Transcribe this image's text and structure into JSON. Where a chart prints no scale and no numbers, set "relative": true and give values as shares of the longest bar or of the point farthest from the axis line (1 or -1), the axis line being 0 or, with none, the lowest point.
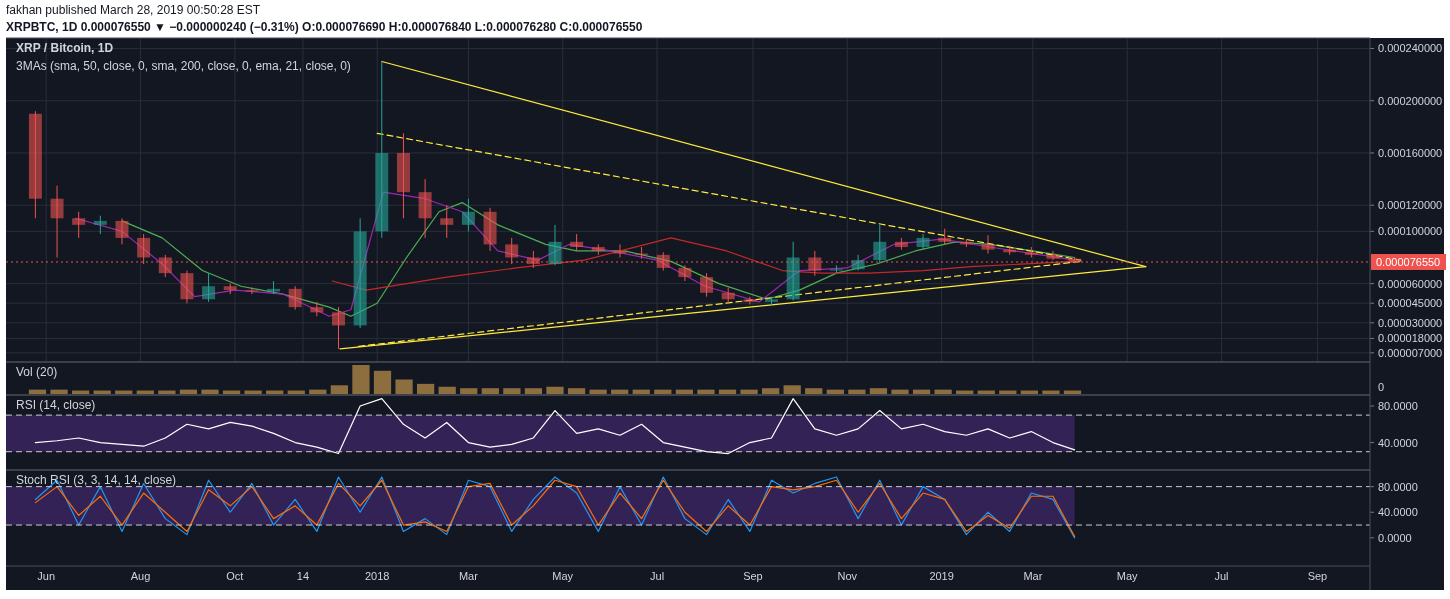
{
  "chart_data": [
    {
      "type": "candlestick",
      "title": "XRP / Bitcoin, 1D",
      "subtitle": "3MAs (sma, 50, close, 0, sma, 200, close, 0, ema, 21, close, 0)",
      "annotations": [
        "fakhan published March 28, 2019 00:50:28 EST",
        "XRPBTC, 1D 0.000076550 ▼ −0.000000240 (−0.31%) O:0.000076690 H:0.000076840 L:0.000076280 C:0.000076550"
      ],
      "x": [
        "2017-05-25",
        "2017-06-08",
        "2017-06-22",
        "2017-07-06",
        "2017-07-20",
        "2017-08-03",
        "2017-08-17",
        "2017-08-31",
        "2017-09-14",
        "2017-09-28",
        "2017-10-12",
        "2017-10-26",
        "2017-11-09",
        "2017-11-23",
        "2017-12-07",
        "2017-12-21",
        "2018-01-04",
        "2018-01-18",
        "2018-02-01",
        "2018-02-15",
        "2018-03-01",
        "2018-03-15",
        "2018-03-29",
        "2018-04-12",
        "2018-04-26",
        "2018-05-10",
        "2018-05-24",
        "2018-06-07",
        "2018-06-21",
        "2018-07-05",
        "2018-07-19",
        "2018-08-02",
        "2018-08-16",
        "2018-08-30",
        "2018-09-13",
        "2018-09-27",
        "2018-10-11",
        "2018-10-25",
        "2018-11-08",
        "2018-11-22",
        "2018-12-06",
        "2018-12-20",
        "2019-01-03",
        "2019-01-17",
        "2019-01-31",
        "2019-02-14",
        "2019-02-28",
        "2019-03-14",
        "2019-03-28"
      ],
      "ohlc": [
        [
          0.00019,
          0.000192,
          0.00011,
          0.000125
        ],
        [
          0.000125,
          0.000135,
          8e-05,
          0.00011
        ],
        [
          0.00011,
          0.000115,
          9.5e-05,
          0.000105
        ],
        [
          0.000105,
          0.000112,
          9.8e-05,
          0.000108
        ],
        [
          0.000108,
          0.00011,
          9e-05,
          9.5e-05
        ],
        [
          9.5e-05,
          9.8e-05,
          7.5e-05,
          8e-05
        ],
        [
          8e-05,
          8.2e-05,
          6.5e-05,
          6.8e-05
        ],
        [
          6.8e-05,
          7e-05,
          4.5e-05,
          4.8e-05
        ],
        [
          4.8e-05,
          6.8e-05,
          4.6e-05,
          5.8e-05
        ],
        [
          5.8e-05,
          6e-05,
          5.2e-05,
          5.5e-05
        ],
        [
          5.5e-05,
          5.7e-05,
          5.2e-05,
          5.4e-05
        ],
        [
          5.4e-05,
          6.2e-05,
          5.2e-05,
          5.6e-05
        ],
        [
          5.6e-05,
          5.8e-05,
          4e-05,
          4.2e-05
        ],
        [
          4.2e-05,
          4.6e-05,
          3.5e-05,
          3.8e-05
        ],
        [
          3.8e-05,
          4.2e-05,
          1e-05,
          2.8e-05
        ],
        [
          2.8e-05,
          0.00011,
          2.6e-05,
          0.0001
        ],
        [
          0.0001,
          0.00023,
          9.5e-05,
          0.00016
        ],
        [
          0.00016,
          0.000175,
          0.00011,
          0.00013
        ],
        [
          0.00013,
          0.00014,
          9.5e-05,
          0.00011
        ],
        [
          0.00011,
          0.00012,
          9.5e-05,
          0.000105
        ],
        [
          0.000105,
          0.000125,
          0.0001,
          0.000115
        ],
        [
          0.000115,
          0.000118,
          8.5e-05,
          9e-05
        ],
        [
          9e-05,
          9.5e-05,
          7.5e-05,
          8e-05
        ],
        [
          8e-05,
          8.5e-05,
          7.2e-05,
          7.5e-05
        ],
        [
          7.5e-05,
          0.000105,
          7.4e-05,
          9.2e-05
        ],
        [
          9.2e-05,
          9.8e-05,
          8.5e-05,
          8.8e-05
        ],
        [
          8.8e-05,
          9e-05,
          8.2e-05,
          8.5e-05
        ],
        [
          8.5e-05,
          9e-05,
          8e-05,
          8.3e-05
        ],
        [
          8.3e-05,
          8.8e-05,
          7.9e-05,
          8.2e-05
        ],
        [
          8.2e-05,
          8.4e-05,
          7e-05,
          7.2e-05
        ],
        [
          7.2e-05,
          7.4e-05,
          6.2e-05,
          6.5e-05
        ],
        [
          6.5e-05,
          6.8e-05,
          5e-05,
          5.3e-05
        ],
        [
          5.3e-05,
          5.7e-05,
          4.5e-05,
          4.8e-05
        ],
        [
          4.8e-05,
          5e-05,
          4.4e-05,
          4.6e-05
        ],
        [
          4.6e-05,
          5e-05,
          4.3e-05,
          4.8e-05
        ],
        [
          4.8e-05,
          9.2e-05,
          4.7e-05,
          8e-05
        ],
        [
          8e-05,
          8.5e-05,
          6.6e-05,
          7e-05
        ],
        [
          7e-05,
          7.4e-05,
          6.8e-05,
          7.1e-05
        ],
        [
          7.1e-05,
          8.2e-05,
          7e-05,
          7.8e-05
        ],
        [
          7.8e-05,
          0.000105,
          7.6e-05,
          9.2e-05
        ],
        [
          9.2e-05,
          9.5e-05,
          8.6e-05,
          8.8e-05
        ],
        [
          8.8e-05,
          9.8e-05,
          8.6e-05,
          9.5e-05
        ],
        [
          9.5e-05,
          0.000102,
          9e-05,
          9.2e-05
        ],
        [
          9.2e-05,
          9.4e-05,
          8.8e-05,
          9e-05
        ],
        [
          9e-05,
          9.7e-05,
          8.3e-05,
          8.6e-05
        ],
        [
          8.6e-05,
          8.9e-05,
          8.2e-05,
          8.4e-05
        ],
        [
          8.4e-05,
          8.8e-05,
          8e-05,
          8.2e-05
        ],
        [
          8.2e-05,
          8.5e-05,
          7.8e-05,
          7.9e-05
        ],
        [
          7.9e-05,
          8e-05,
          7.63e-05,
          7.655e-05
        ]
      ],
      "colors": [
        "#ef5350",
        "#ef5350",
        "#ef5350",
        "#26a69a",
        "#ef5350",
        "#ef5350",
        "#ef5350",
        "#ef5350",
        "#26a69a",
        "#ef5350",
        "#ef5350",
        "#26a69a",
        "#ef5350",
        "#ef5350",
        "#ef5350",
        "#26a69a",
        "#26a69a",
        "#ef5350",
        "#ef5350",
        "#ef5350",
        "#26a69a",
        "#ef5350",
        "#ef5350",
        "#ef5350",
        "#26a69a",
        "#ef5350",
        "#ef5350",
        "#ef5350",
        "#ef5350",
        "#ef5350",
        "#ef5350",
        "#ef5350",
        "#ef5350",
        "#ef5350",
        "#26a69a",
        "#26a69a",
        "#ef5350",
        "#26a69a",
        "#26a69a",
        "#26a69a",
        "#ef5350",
        "#26a69a",
        "#ef5350",
        "#ef5350",
        "#ef5350",
        "#ef5350",
        "#ef5350",
        "#ef5350",
        "#ef5350"
      ],
      "series": [
        {
          "type": "line",
          "color": "#4caf50",
          "x": [
            "2017-07-20",
            "2017-08-15",
            "2017-09-10",
            "2017-10-05",
            "2017-11-01",
            "2017-12-01",
            "2017-12-15",
            "2018-01-01",
            "2018-01-20",
            "2018-02-10",
            "2018-02-25",
            "2018-03-20",
            "2018-04-20",
            "2018-05-10",
            "2018-06-10",
            "2018-07-10",
            "2018-08-10",
            "2018-09-10",
            "2018-10-01",
            "2018-10-25",
            "2018-11-20",
            "2018-12-15",
            "2019-01-10",
            "2019-02-01",
            "2019-03-01",
            "2019-03-28"
          ],
          "values": [
            0.000108,
            9.5e-05,
            7e-05,
            5.8e-05,
            5.2e-05,
            4.2e-05,
            3.5e-05,
            4.5e-05,
            8e-05,
            0.000115,
            0.000122,
            0.000105,
            9e-05,
            8.5e-05,
            8.5e-05,
            7.7e-05,
            6e-05,
            4.8e-05,
            5.5e-05,
            6.8e-05,
            7.5e-05,
            8.5e-05,
            9.2e-05,
            9e-05,
            8.5e-05,
            8e-05
          ]
        },
        {
          "type": "line",
          "color": "#c62828",
          "x": [
            "2017-12-03",
            "2017-12-25",
            "2018-02-15",
            "2018-04-01",
            "2018-05-15",
            "2018-07-10",
            "2018-08-15",
            "2018-09-20",
            "2018-10-15",
            "2018-11-15",
            "2018-12-20",
            "2019-01-20",
            "2019-03-28"
          ],
          "values": [
            6.2e-05,
            5.5e-05,
            6.5e-05,
            7.2e-05,
            7.8e-05,
            9.5e-05,
            8.5e-05,
            7e-05,
            6.8e-05,
            6.8e-05,
            7e-05,
            7.3e-05,
            7.7e-05
          ]
        },
        {
          "type": "line",
          "color": "#9c27b0",
          "x": [
            "2017-06-20",
            "2017-07-20",
            "2017-08-15",
            "2017-09-05",
            "2017-10-01",
            "2017-11-01",
            "2017-12-01",
            "2017-12-15",
            "2018-01-05",
            "2018-02-01",
            "2018-02-25",
            "2018-03-20",
            "2018-04-15",
            "2018-05-05",
            "2018-06-01",
            "2018-07-01",
            "2018-08-01",
            "2018-09-05",
            "2018-10-01",
            "2018-11-01",
            "2018-12-01",
            "2019-01-01",
            "2019-02-01",
            "2019-03-28"
          ],
          "values": [
            0.00011,
            0.0001,
            7.5e-05,
            5e-05,
            5.5e-05,
            5.2e-05,
            3.5e-05,
            4e-05,
            0.00013,
            0.000125,
            0.000115,
            8.5e-05,
            7.8e-05,
            9e-05,
            8.5e-05,
            7.8e-05,
            5.8e-05,
            4.6e-05,
            7e-05,
            7.2e-05,
            9e-05,
            9.4e-05,
            8.8e-05,
            7.8e-05
          ]
        },
        {
          "type": "line",
          "color": "#ffeb3b",
          "line_style": "solid",
          "x": [
            "2018-01-04",
            "2019-05-13"
          ],
          "values": [
            0.00023,
            7.3e-05
          ]
        },
        {
          "type": "line",
          "color": "#ffeb3b",
          "line_style": "solid",
          "x": [
            "2017-12-08",
            "2019-05-13"
          ],
          "values": [
            1e-05,
            7.3e-05
          ]
        },
        {
          "type": "line",
          "color": "#ffeb3b",
          "line_style": "dashed",
          "x": [
            "2018-01-01",
            "2019-04-01"
          ],
          "values": [
            0.000175,
            7.8e-05
          ]
        },
        {
          "type": "line",
          "color": "#ffeb3b",
          "line_style": "dashed",
          "x": [
            "2017-12-20",
            "2019-04-01"
          ],
          "values": [
            1.2e-05,
            7.7e-05
          ]
        }
      ],
      "xlim": [
        "2017-05-06",
        "2019-10-05"
      ],
      "ylim": [
        0,
        0.000248
      ],
      "yticks": [
        {
          "value": 0.00024,
          "label": "0.000240000"
        },
        {
          "value": 0.0002,
          "label": "0.000200000"
        },
        {
          "value": 0.00016,
          "label": "0.000160000"
        },
        {
          "value": 0.00012,
          "label": "0.000120000"
        },
        {
          "value": 0.0001,
          "label": "0.000100000"
        },
        {
          "value": 6e-05,
          "label": "0.000060000"
        },
        {
          "value": 4.5e-05,
          "label": "0.000045000"
        },
        {
          "value": 3e-05,
          "label": "0.000030000"
        },
        {
          "value": 1.8e-05,
          "label": "0.000018000"
        },
        {
          "value": 7e-06,
          "label": "0.000007000"
        }
      ],
      "ref_lines": [
        {
          "axis": "y",
          "value": 7.655e-05,
          "label": "0.000076550",
          "color": "#ef5350",
          "line_style": "dotted"
        }
      ],
      "grid": true,
      "tick_labels": "y"
    },
    {
      "type": "bar",
      "title": "Vol (20)",
      "relative": true,
      "annotations": [
        "0"
      ],
      "color": "#8d6e3f",
      "categories": [
        null,
        null,
        null,
        null,
        null,
        null,
        null,
        null,
        null,
        null,
        null,
        null,
        null,
        null,
        null,
        null,
        null,
        null,
        null,
        null,
        null,
        null,
        null,
        null,
        null,
        null,
        null,
        null,
        null,
        null,
        null,
        null,
        null,
        null,
        null,
        null,
        null,
        null,
        null,
        null,
        null,
        null,
        null,
        null,
        null,
        null,
        null,
        null,
        null
      ],
      "values": [
        0.15,
        0.15,
        0.12,
        0.12,
        0.12,
        0.12,
        0.12,
        0.15,
        0.15,
        0.12,
        0.12,
        0.12,
        0.12,
        0.15,
        0.3,
        1,
        0.8,
        0.5,
        0.35,
        0.25,
        0.2,
        0.2,
        0.2,
        0.2,
        0.25,
        0.2,
        0.15,
        0.15,
        0.15,
        0.15,
        0.15,
        0.15,
        0.15,
        0.15,
        0.2,
        0.3,
        0.2,
        0.15,
        0.15,
        0.2,
        0.15,
        0.15,
        0.15,
        0.12,
        0.12,
        0.12,
        0.12,
        0.12,
        0.12
      ],
      "tick_labels": false
    },
    {
      "type": "line",
      "title": "RSI (14, close)",
      "x": [
        "2017-05-25",
        "2017-06-08",
        "2017-06-22",
        "2017-07-06",
        "2017-07-20",
        "2017-08-03",
        "2017-08-17",
        "2017-08-31",
        "2017-09-14",
        "2017-09-28",
        "2017-10-12",
        "2017-10-26",
        "2017-11-09",
        "2017-11-23",
        "2017-12-07",
        "2017-12-21",
        "2018-01-04",
        "2018-01-18",
        "2018-02-01",
        "2018-02-15",
        "2018-03-01",
        "2018-03-15",
        "2018-03-29",
        "2018-04-12",
        "2018-04-26",
        "2018-05-10",
        "2018-05-24",
        "2018-06-07",
        "2018-06-21",
        "2018-07-05",
        "2018-07-19",
        "2018-08-02",
        "2018-08-16",
        "2018-08-30",
        "2018-09-13",
        "2018-09-27",
        "2018-10-11",
        "2018-10-25",
        "2018-11-08",
        "2018-11-22",
        "2018-12-06",
        "2018-12-20",
        "2019-01-03",
        "2019-01-17",
        "2019-01-31",
        "2019-02-14",
        "2019-02-28",
        "2019-03-14",
        "2019-03-28"
      ],
      "series": [
        {
          "color": "#ffffff",
          "values": [
            40,
            42,
            45,
            40,
            38,
            36,
            45,
            60,
            55,
            62,
            58,
            50,
            40,
            35,
            28,
            80,
            88,
            60,
            45,
            62,
            40,
            35,
            38,
            45,
            75,
            50,
            55,
            48,
            60,
            40,
            35,
            30,
            28,
            40,
            45,
            88,
            55,
            48,
            55,
            75,
            55,
            60,
            52,
            48,
            55,
            45,
            52,
            40,
            32
          ]
        }
      ],
      "xlim": [
        "2017-05-06",
        "2019-10-05"
      ],
      "ylim": [
        10,
        92
      ],
      "yticks": [
        {
          "value": 80,
          "label": "80.0000"
        },
        {
          "value": 40,
          "label": "40.0000"
        }
      ],
      "bands": [
        {
          "axis": "y",
          "from": 30,
          "to": 70,
          "color": "#4a2a7a"
        }
      ],
      "ref_lines": [
        {
          "axis": "y",
          "value": 70,
          "color": "#cccccc",
          "line_style": "dashed"
        },
        {
          "axis": "y",
          "value": 30,
          "color": "#cccccc",
          "line_style": "dashed"
        }
      ],
      "tick_labels": "y"
    },
    {
      "type": "line",
      "title": "Stoch RSI (3, 3, 14, 14, close)",
      "x": [
        "2017-05-25",
        "2017-06-08",
        "2017-06-22",
        "2017-07-06",
        "2017-07-20",
        "2017-08-03",
        "2017-08-17",
        "2017-08-31",
        "2017-09-14",
        "2017-09-28",
        "2017-10-12",
        "2017-10-26",
        "2017-11-09",
        "2017-11-23",
        "2017-12-07",
        "2017-12-21",
        "2018-01-04",
        "2018-01-18",
        "2018-02-01",
        "2018-02-15",
        "2018-03-01",
        "2018-03-15",
        "2018-03-29",
        "2018-04-12",
        "2018-04-26",
        "2018-05-10",
        "2018-05-24",
        "2018-06-07",
        "2018-06-21",
        "2018-07-05",
        "2018-07-19",
        "2018-08-02",
        "2018-08-16",
        "2018-08-30",
        "2018-09-13",
        "2018-09-27",
        "2018-10-11",
        "2018-10-25",
        "2018-11-08",
        "2018-11-22",
        "2018-12-06",
        "2018-12-20",
        "2019-01-03",
        "2019-01-17",
        "2019-01-31",
        "2019-02-14",
        "2019-02-28",
        "2019-03-14",
        "2019-03-28"
      ],
      "series": [
        {
          "color": "#2196f3",
          "values": [
            60,
            90,
            20,
            80,
            10,
            85,
            30,
            5,
            90,
            40,
            85,
            20,
            60,
            10,
            95,
            40,
            95,
            10,
            30,
            5,
            90,
            80,
            10,
            60,
            95,
            70,
            10,
            80,
            20,
            95,
            30,
            5,
            60,
            10,
            90,
            70,
            85,
            95,
            30,
            90,
            20,
            80,
            60,
            5,
            40,
            10,
            70,
            60,
            0
          ]
        },
        {
          "color": "#ff6d00",
          "values": [
            55,
            80,
            35,
            65,
            20,
            70,
            40,
            10,
            75,
            50,
            80,
            30,
            50,
            20,
            85,
            50,
            90,
            20,
            25,
            10,
            80,
            85,
            20,
            50,
            90,
            80,
            20,
            70,
            30,
            90,
            40,
            10,
            50,
            20,
            80,
            75,
            80,
            90,
            40,
            85,
            30,
            70,
            60,
            10,
            35,
            15,
            65,
            65,
            2
          ]
        }
      ],
      "xlim": [
        "2017-05-06",
        "2019-10-05"
      ],
      "ylim": [
        -44,
        106
      ],
      "xticks": [
        {
          "value": "2017-06-01",
          "label": "Jun"
        },
        {
          "value": "2017-08-01",
          "label": "Aug"
        },
        {
          "value": "2017-10-01",
          "label": "Oct"
        },
        {
          "value": "2017-11-14",
          "label": "14"
        },
        {
          "value": "2018-01-01",
          "label": "2018"
        },
        {
          "value": "2018-03-01",
          "label": "Mar"
        },
        {
          "value": "2018-05-01",
          "label": "May"
        },
        {
          "value": "2018-07-01",
          "label": "Jul"
        },
        {
          "value": "2018-09-01",
          "label": "Sep"
        },
        {
          "value": "2018-11-01",
          "label": "Nov"
        },
        {
          "value": "2019-01-01",
          "label": "2019"
        },
        {
          "value": "2019-03-01",
          "label": "Mar"
        },
        {
          "value": "2019-05-01",
          "label": "May"
        },
        {
          "value": "2019-07-01",
          "label": "Jul"
        },
        {
          "value": "2019-09-01",
          "label": "Sep"
        }
      ],
      "yticks": [
        {
          "value": 80,
          "label": "80.0000"
        },
        {
          "value": 40,
          "label": "40.0000"
        },
        {
          "value": 0,
          "label": "0.0000"
        }
      ],
      "bands": [
        {
          "axis": "y",
          "from": 20,
          "to": 80,
          "color": "#4a2a7a"
        }
      ],
      "ref_lines": [
        {
          "axis": "y",
          "value": 80,
          "color": "#cccccc",
          "line_style": "dashed"
        },
        {
          "axis": "y",
          "value": 20,
          "color": "#cccccc",
          "line_style": "dashed"
        }
      ]
    }
  ]
}
